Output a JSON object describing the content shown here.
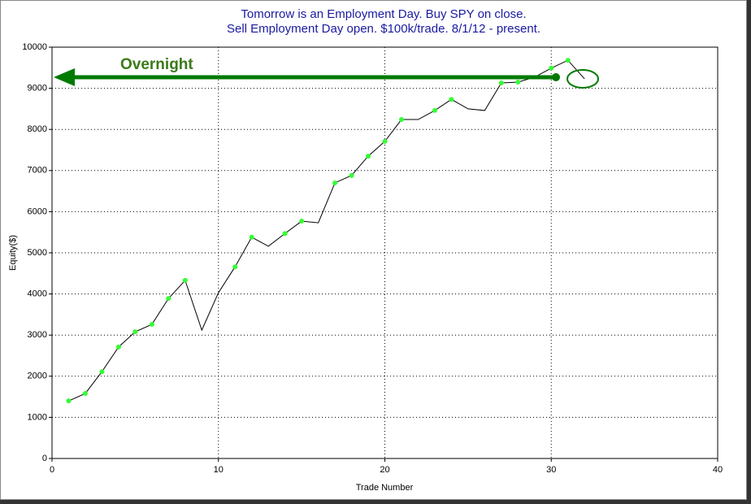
{
  "chart_data": {
    "type": "line",
    "title": [
      "Tomorrow is an Employment Day. Buy SPY on close.",
      "Sell Employment Day open. $100k/trade. 8/1/12 - present."
    ],
    "x_label": "Trade Number",
    "y_label": "Equity($)",
    "annotation": "Overnight",
    "x": [
      1,
      2,
      3,
      4,
      5,
      6,
      7,
      8,
      9,
      10,
      11,
      12,
      13,
      14,
      15,
      16,
      17,
      18,
      19,
      20,
      21,
      22,
      23,
      24,
      25,
      26,
      27,
      28,
      29,
      30,
      31,
      32
    ],
    "series": [
      {
        "color": "#000000",
        "values": [
          1400,
          1580,
          2110,
          2710,
          3080,
          3260,
          3890,
          4330,
          3120,
          4030,
          4660,
          5380,
          5160,
          5470,
          5770,
          5730,
          6700,
          6880,
          7350,
          7710,
          8240,
          8240,
          8460,
          8730,
          8500,
          8460,
          9130,
          9150,
          9270,
          9490,
          9680,
          9230
        ],
        "marker_colors": [
          "#33ff33",
          "#33ff33",
          "#33ff33",
          "#33ff33",
          "#33ff33",
          "#33ff33",
          "#33ff33",
          "#33ff33",
          null,
          null,
          "#33ff33",
          "#33ff33",
          null,
          "#33ff33",
          "#33ff33",
          null,
          "#33ff33",
          "#33ff33",
          "#33ff33",
          "#33ff33",
          "#33ff33",
          null,
          "#33ff33",
          "#33ff33",
          null,
          null,
          "#33ff33",
          "#33ff33",
          null,
          "#33ff33",
          "#33ff33",
          null
        ]
      }
    ],
    "xlim": [
      0,
      40
    ],
    "xticks": [
      0,
      10,
      20,
      30,
      40
    ],
    "ylim": [
      0,
      10000
    ],
    "yticks": [
      0,
      1000,
      2000,
      3000,
      4000,
      5000,
      6000,
      7000,
      8000,
      9000,
      10000
    ],
    "grid": true,
    "annotation_color": "#007a00",
    "title_color": "#1a1aa0"
  }
}
